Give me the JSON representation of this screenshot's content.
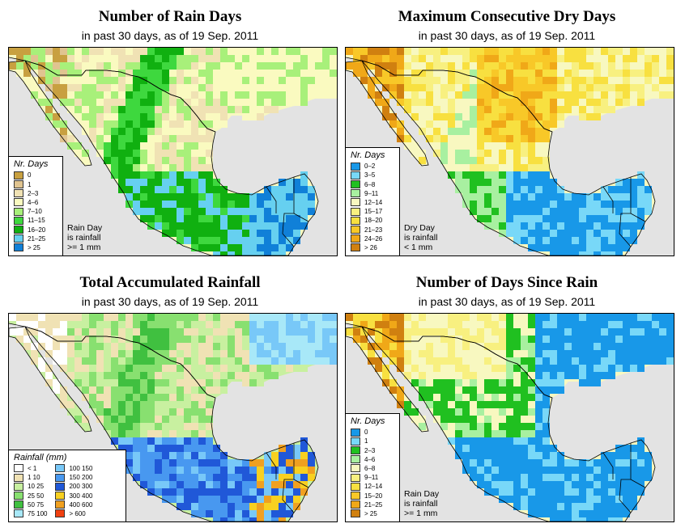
{
  "panels": [
    {
      "id": "rain-days",
      "title": "Number of Rain Days",
      "subtitle": "in past 30 days, as of  19 Sep. 2011",
      "legend_title": "Nr. Days",
      "legend": [
        {
          "label": "0",
          "color": "#c8a040"
        },
        {
          "label": "1",
          "color": "#e0c490"
        },
        {
          "label": "2–3",
          "color": "#f0e2b4"
        },
        {
          "label": "4–6",
          "color": "#fafac0"
        },
        {
          "label": "7–10",
          "color": "#a8f07a"
        },
        {
          "label": "11–15",
          "color": "#3ed83e"
        },
        {
          "label": "16–20",
          "color": "#10b010"
        },
        {
          "label": "21–25",
          "color": "#66d0f0"
        },
        {
          "label": "> 25",
          "color": "#1080d8"
        }
      ],
      "note": [
        "Rain Day",
        "is rainfall",
        ">= 1 mm"
      ]
    },
    {
      "id": "dry-days",
      "title": "Maximum Consecutive Dry Days",
      "subtitle": "in past 30 days, as of  19 Sep. 2011",
      "legend_title": "Nr. Days",
      "legend": [
        {
          "label": "0–2",
          "color": "#1898e8"
        },
        {
          "label": "3–5",
          "color": "#78d8f8"
        },
        {
          "label": "6–8",
          "color": "#20c020"
        },
        {
          "label": "9–11",
          "color": "#a8f0a0"
        },
        {
          "label": "12–14",
          "color": "#f8f8c0"
        },
        {
          "label": "15–17",
          "color": "#f8f080"
        },
        {
          "label": "18–20",
          "color": "#f8e040"
        },
        {
          "label": "21–23",
          "color": "#f8c828"
        },
        {
          "label": "24–26",
          "color": "#f0a818"
        },
        {
          "label": "> 26",
          "color": "#d08010"
        }
      ],
      "note": [
        "Dry Day",
        "is rainfall",
        "< 1 mm"
      ]
    },
    {
      "id": "total-rainfall",
      "title": "Total Accumulated Rainfall",
      "subtitle": "in past 30 days, as of  19 Sep. 2011",
      "legend_title": "Rainfall (mm)",
      "legend_left": [
        {
          "label": "< 1",
          "color": "#ffffff"
        },
        {
          "label": "1   10",
          "color": "#f0e2b4"
        },
        {
          "label": "10   25",
          "color": "#c8f0a0"
        },
        {
          "label": "25   50",
          "color": "#88e070"
        },
        {
          "label": "50   75",
          "color": "#40c040"
        },
        {
          "label": "75   100",
          "color": "#a8e8f8"
        }
      ],
      "legend_right": [
        {
          "label": "100  150",
          "color": "#78c8f8"
        },
        {
          "label": "150  200",
          "color": "#4898f0"
        },
        {
          "label": "200  300",
          "color": "#2058d8"
        },
        {
          "label": "300  400",
          "color": "#f8d020"
        },
        {
          "label": "400  600",
          "color": "#f0a020"
        },
        {
          "label": "> 600",
          "color": "#f04010"
        }
      ]
    },
    {
      "id": "days-since-rain",
      "title": "Number of Days Since Rain",
      "subtitle": "in past 30 days, as of  19 Sep. 2011",
      "legend_title": "Nr. Days",
      "legend": [
        {
          "label": "0",
          "color": "#1898e8"
        },
        {
          "label": "1",
          "color": "#78d8f8"
        },
        {
          "label": "2–3",
          "color": "#20c020"
        },
        {
          "label": "4–6",
          "color": "#a8f0a0"
        },
        {
          "label": "6–8",
          "color": "#f8f8c0"
        },
        {
          "label": "9–11",
          "color": "#f8f080"
        },
        {
          "label": "12–14",
          "color": "#f8e040"
        },
        {
          "label": "15–20",
          "color": "#f8c828"
        },
        {
          "label": "21–25",
          "color": "#f0a818"
        },
        {
          "label": "> 25",
          "color": "#d08010"
        }
      ],
      "note": [
        "Rain Day",
        "is rainfall",
        ">= 1 mm"
      ]
    }
  ],
  "colors": {
    "ocean": "#e3e3e3",
    "border": "#000000"
  }
}
